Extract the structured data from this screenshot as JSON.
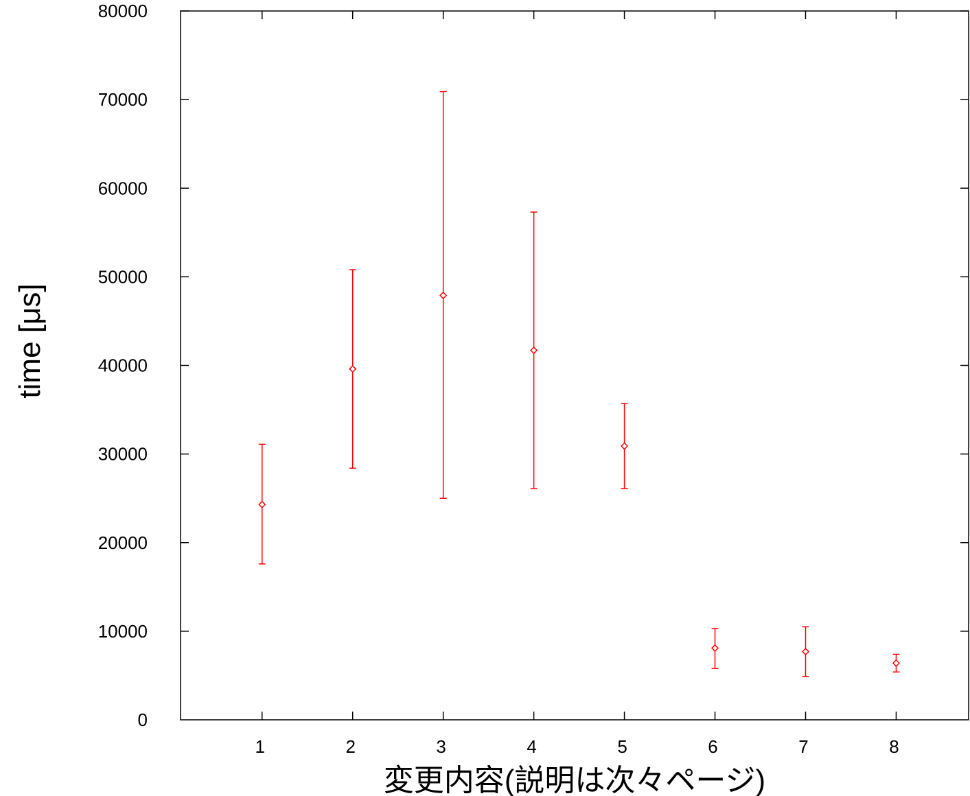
{
  "chart_data": {
    "type": "scatter",
    "title": "",
    "xlabel": "変更内容(説明は次々ページ)",
    "ylabel": "time [μs]",
    "xlim": [
      0.1,
      8.8
    ],
    "ylim": [
      0,
      80000
    ],
    "xticks": [
      "1",
      "2",
      "3",
      "4",
      "5",
      "6",
      "7",
      "8"
    ],
    "yticks": [
      "0",
      "10000",
      "20000",
      "30000",
      "40000",
      "50000",
      "60000",
      "70000",
      "80000"
    ],
    "grid": false,
    "legend": "none",
    "series": [
      {
        "marker": "diamond",
        "color": "#ff0000",
        "points": [
          {
            "x": 1,
            "y": 24300,
            "low": 17600,
            "high": 31100
          },
          {
            "x": 2,
            "y": 39600,
            "low": 28400,
            "high": 50800
          },
          {
            "x": 3,
            "y": 47900,
            "low": 25000,
            "high": 70900
          },
          {
            "x": 4,
            "y": 41700,
            "low": 26100,
            "high": 57300
          },
          {
            "x": 5,
            "y": 30900,
            "low": 26100,
            "high": 35700
          },
          {
            "x": 6,
            "y": 8100,
            "low": 5800,
            "high": 10300
          },
          {
            "x": 7,
            "y": 7700,
            "low": 4900,
            "high": 10500
          },
          {
            "x": 8,
            "y": 6400,
            "low": 5400,
            "high": 7400
          }
        ]
      }
    ]
  }
}
